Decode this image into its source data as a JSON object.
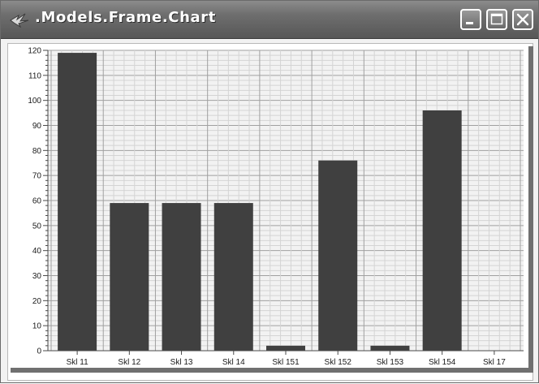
{
  "window": {
    "title": ".Models.Frame.Chart",
    "icons": [
      "app-icon",
      "minimize-icon",
      "maximize-icon",
      "close-icon"
    ]
  },
  "colors": {
    "titlebar": "#6f6f6f",
    "plot_background": "#f2f2f2",
    "grid": "#a0a0a0",
    "bar": "#404040"
  },
  "chart_data": {
    "type": "bar",
    "categories": [
      "Skl 11",
      "Skl 12",
      "Skl 13",
      "Skl 14",
      "Skl 151",
      "Skl 152",
      "Skl 153",
      "Skl 154",
      "Skl 17"
    ],
    "values": [
      119,
      59,
      59,
      59,
      2,
      76,
      2,
      96,
      0
    ],
    "ylim": [
      0,
      120
    ],
    "yticks": [
      0,
      10,
      20,
      30,
      40,
      50,
      60,
      70,
      80,
      90,
      100,
      110,
      120
    ],
    "grid": true,
    "legend": "none"
  }
}
